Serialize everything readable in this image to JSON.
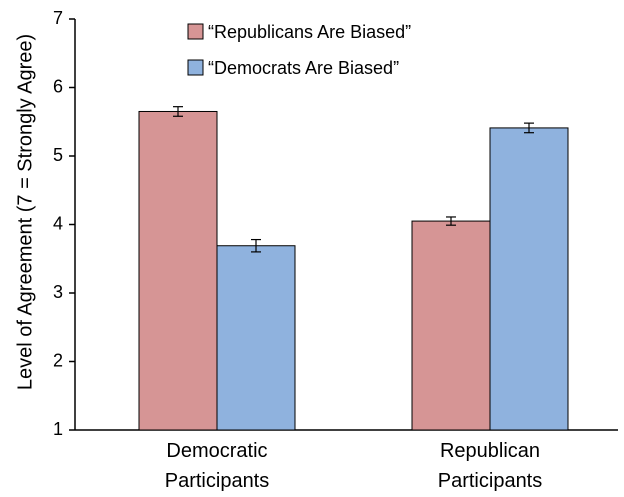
{
  "chart_data": {
    "type": "bar",
    "title": "",
    "xlabel": "",
    "ylabel": "Level of Agreement  (7 = Strongly Agree)",
    "ylim": [
      1,
      7
    ],
    "yticks": [
      "1",
      "2",
      "3",
      "4",
      "5",
      "6",
      "7"
    ],
    "categories": [
      {
        "line1": "Democratic",
        "line2": "Participants"
      },
      {
        "line1": "Republican",
        "line2": "Participants"
      }
    ],
    "series": [
      {
        "name": "“Republicans Are Biased”",
        "color": "#d69595",
        "values": [
          5.65,
          4.05
        ],
        "errors": [
          0.07,
          0.06
        ]
      },
      {
        "name": "“Democrats Are Biased”",
        "color": "#8fb2de",
        "values": [
          3.69,
          5.41
        ],
        "errors": [
          0.09,
          0.07
        ]
      }
    ],
    "legend_position": "top-left",
    "grid": false,
    "error_bars": true
  }
}
